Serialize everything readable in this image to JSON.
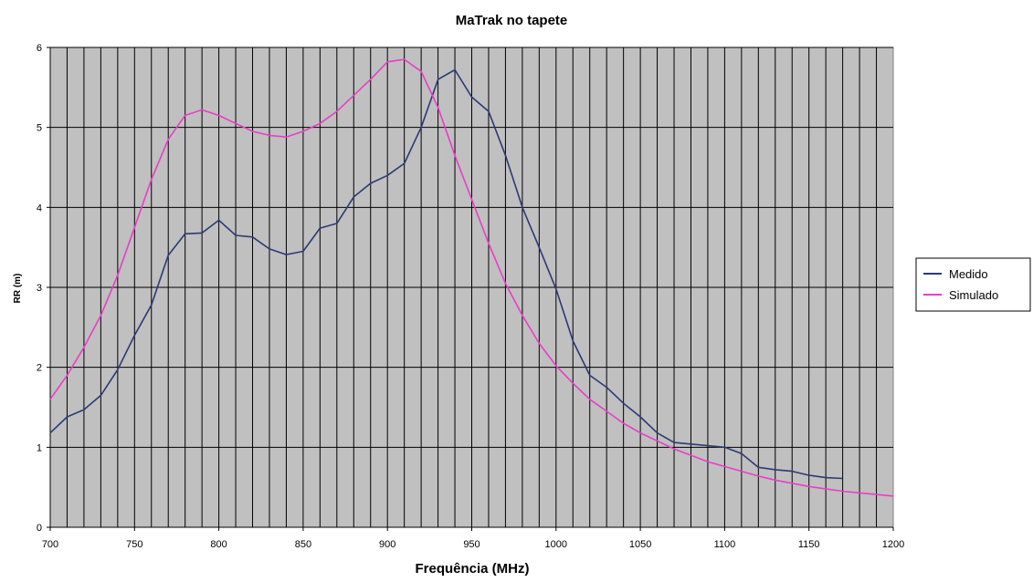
{
  "chart_data": {
    "type": "line",
    "title": "MaTrak no tapete",
    "xlabel": "Frequência (MHz)",
    "ylabel": "RR (m)",
    "xlim": [
      700,
      1200
    ],
    "ylim": [
      0,
      6
    ],
    "x_ticks": [
      700,
      750,
      800,
      850,
      900,
      950,
      1000,
      1050,
      1100,
      1150,
      1200
    ],
    "y_ticks": [
      0,
      1,
      2,
      3,
      4,
      5,
      6
    ],
    "x_minor_step": 10,
    "grid": true,
    "plot_background": "#c0c0c0",
    "legend_position": "right",
    "series": [
      {
        "name": "Medido",
        "color": "#2b3a73",
        "x": [
          700,
          710,
          720,
          730,
          740,
          750,
          760,
          770,
          780,
          790,
          800,
          810,
          820,
          830,
          840,
          850,
          860,
          870,
          880,
          890,
          900,
          910,
          920,
          930,
          940,
          950,
          960,
          970,
          980,
          990,
          1000,
          1010,
          1020,
          1030,
          1040,
          1050,
          1060,
          1070,
          1080,
          1090,
          1100,
          1110,
          1120,
          1130,
          1140,
          1150,
          1160,
          1170
        ],
        "y": [
          1.18,
          1.38,
          1.47,
          1.65,
          1.97,
          2.4,
          2.78,
          3.4,
          3.67,
          3.68,
          3.84,
          3.65,
          3.63,
          3.48,
          3.41,
          3.45,
          3.74,
          3.8,
          4.13,
          4.3,
          4.4,
          4.55,
          5.0,
          5.6,
          5.72,
          5.38,
          5.2,
          4.65,
          4.0,
          3.5,
          2.98,
          2.33,
          1.9,
          1.75,
          1.55,
          1.38,
          1.18,
          1.06,
          1.04,
          1.02,
          1.0,
          0.92,
          0.75,
          0.72,
          0.7,
          0.65,
          0.62,
          0.61
        ]
      },
      {
        "name": "Simulado",
        "color": "#e83ec8",
        "x": [
          700,
          710,
          720,
          730,
          740,
          750,
          760,
          770,
          780,
          790,
          800,
          810,
          820,
          830,
          840,
          850,
          860,
          870,
          880,
          890,
          900,
          910,
          920,
          930,
          940,
          950,
          960,
          970,
          980,
          990,
          1000,
          1010,
          1020,
          1030,
          1040,
          1050,
          1060,
          1070,
          1080,
          1090,
          1100,
          1110,
          1120,
          1130,
          1140,
          1150,
          1160,
          1170,
          1180,
          1190,
          1200
        ],
        "y": [
          1.6,
          1.9,
          2.25,
          2.65,
          3.15,
          3.75,
          4.35,
          4.85,
          5.15,
          5.22,
          5.15,
          5.05,
          4.95,
          4.9,
          4.88,
          4.95,
          5.05,
          5.2,
          5.4,
          5.6,
          5.82,
          5.85,
          5.7,
          5.25,
          4.65,
          4.1,
          3.55,
          3.05,
          2.65,
          2.3,
          2.02,
          1.8,
          1.6,
          1.45,
          1.3,
          1.18,
          1.08,
          0.98,
          0.9,
          0.82,
          0.76,
          0.7,
          0.64,
          0.59,
          0.55,
          0.51,
          0.48,
          0.45,
          0.43,
          0.41,
          0.39
        ]
      }
    ]
  }
}
